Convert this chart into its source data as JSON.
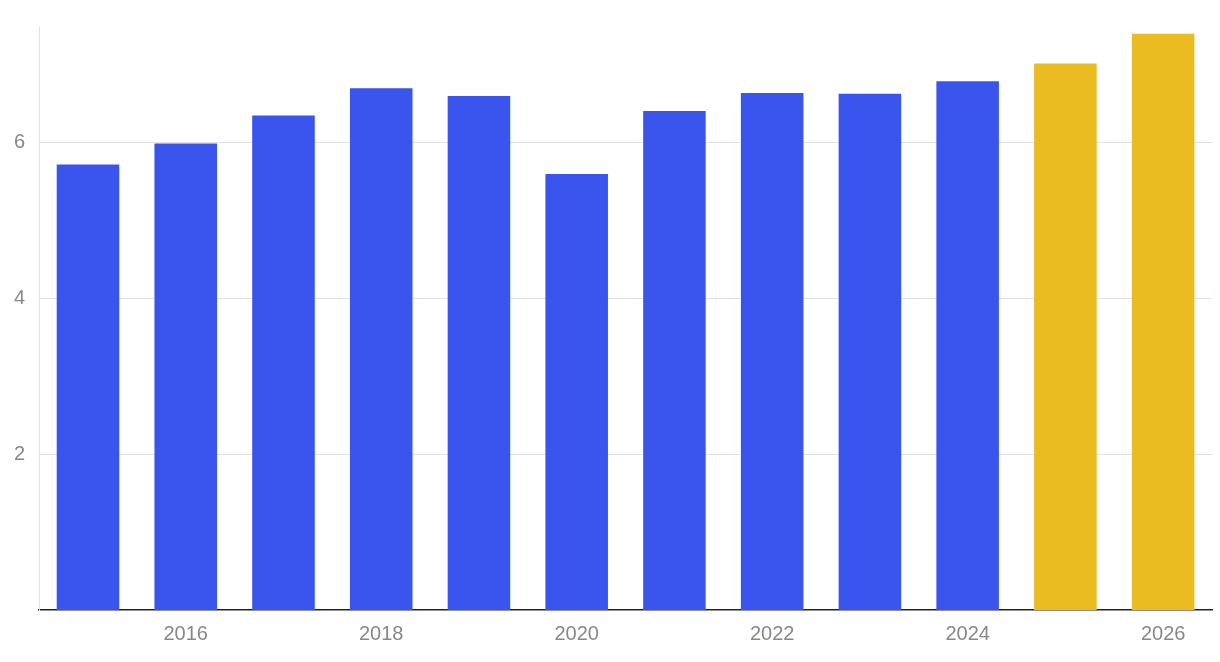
{
  "chart_data": {
    "type": "bar",
    "categories": [
      null,
      "2016",
      null,
      "2018",
      null,
      "2020",
      null,
      "2022",
      null,
      "2024",
      null,
      "2026"
    ],
    "values": [
      5.72,
      5.99,
      6.35,
      6.7,
      6.6,
      5.6,
      6.41,
      6.64,
      6.63,
      6.79,
      7.02,
      7.4
    ],
    "colors": [
      "#3a55ee",
      "#3a55ee",
      "#3a55ee",
      "#3a55ee",
      "#3a55ee",
      "#3a55ee",
      "#3a55ee",
      "#3a55ee",
      "#3a55ee",
      "#3a55ee",
      "#ebbb22",
      "#ebbb22"
    ],
    "ylim": [
      0,
      7.5
    ],
    "yticks": [
      2,
      4,
      6
    ],
    "grid": "y",
    "legend": false
  }
}
